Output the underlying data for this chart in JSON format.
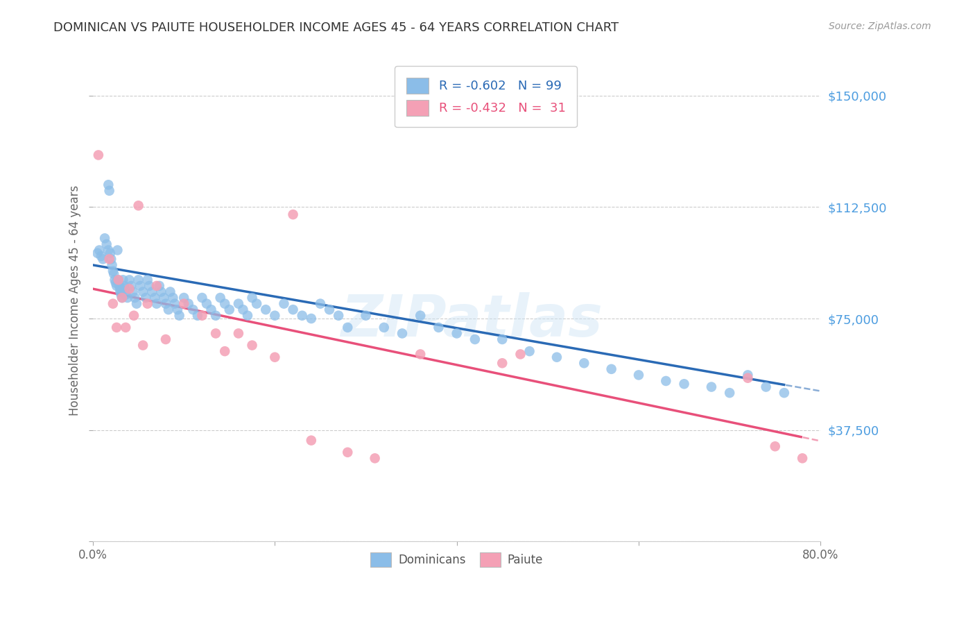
{
  "title": "DOMINICAN VS PAIUTE HOUSEHOLDER INCOME AGES 45 - 64 YEARS CORRELATION CHART",
  "source": "Source: ZipAtlas.com",
  "ylabel": "Householder Income Ages 45 - 64 years",
  "xlim": [
    0.0,
    0.8
  ],
  "ylim": [
    0,
    162000
  ],
  "yticks": [
    0,
    37500,
    75000,
    112500,
    150000
  ],
  "ytick_labels": [
    "",
    "$37,500",
    "$75,000",
    "$112,500",
    "$150,000"
  ],
  "xtick_labels": [
    "0.0%",
    "",
    "",
    "",
    "80.0%"
  ],
  "xticks": [
    0.0,
    0.2,
    0.4,
    0.6,
    0.8
  ],
  "dominican_color": "#8bbde8",
  "paiute_color": "#f4a0b5",
  "dominican_line_color": "#2a6ab5",
  "paiute_line_color": "#e8507a",
  "legend_label_1": "R = -0.602   N = 99",
  "legend_label_2": "R = -0.432   N =  31",
  "bottom_legend_label_1": "Dominicans",
  "bottom_legend_label_2": "Paiute",
  "watermark": "ZIPatlas",
  "background_color": "#ffffff",
  "grid_color": "#cccccc",
  "title_color": "#333333",
  "axis_label_color": "#666666",
  "right_tick_color": "#4d9de0",
  "dominican_x": [
    0.005,
    0.007,
    0.009,
    0.011,
    0.013,
    0.015,
    0.017,
    0.017,
    0.018,
    0.019,
    0.02,
    0.021,
    0.022,
    0.023,
    0.024,
    0.025,
    0.026,
    0.027,
    0.028,
    0.029,
    0.03,
    0.03,
    0.031,
    0.032,
    0.033,
    0.034,
    0.035,
    0.036,
    0.038,
    0.04,
    0.042,
    0.044,
    0.046,
    0.048,
    0.05,
    0.052,
    0.055,
    0.058,
    0.06,
    0.062,
    0.065,
    0.068,
    0.07,
    0.073,
    0.075,
    0.078,
    0.08,
    0.083,
    0.085,
    0.088,
    0.09,
    0.093,
    0.095,
    0.1,
    0.105,
    0.11,
    0.115,
    0.12,
    0.125,
    0.13,
    0.135,
    0.14,
    0.145,
    0.15,
    0.16,
    0.165,
    0.17,
    0.175,
    0.18,
    0.19,
    0.2,
    0.21,
    0.22,
    0.23,
    0.24,
    0.25,
    0.26,
    0.27,
    0.28,
    0.3,
    0.32,
    0.34,
    0.36,
    0.38,
    0.4,
    0.42,
    0.45,
    0.48,
    0.51,
    0.54,
    0.57,
    0.6,
    0.63,
    0.65,
    0.68,
    0.7,
    0.72,
    0.74,
    0.76
  ],
  "dominican_y": [
    97000,
    98000,
    96000,
    95000,
    102000,
    100000,
    98000,
    120000,
    118000,
    97000,
    95000,
    93000,
    91000,
    90000,
    88000,
    87000,
    86000,
    98000,
    88000,
    86000,
    85000,
    84000,
    83000,
    82000,
    88000,
    86000,
    85000,
    83000,
    82000,
    88000,
    86000,
    84000,
    82000,
    80000,
    88000,
    86000,
    84000,
    82000,
    88000,
    86000,
    84000,
    82000,
    80000,
    86000,
    84000,
    82000,
    80000,
    78000,
    84000,
    82000,
    80000,
    78000,
    76000,
    82000,
    80000,
    78000,
    76000,
    82000,
    80000,
    78000,
    76000,
    82000,
    80000,
    78000,
    80000,
    78000,
    76000,
    82000,
    80000,
    78000,
    76000,
    80000,
    78000,
    76000,
    75000,
    80000,
    78000,
    76000,
    72000,
    76000,
    72000,
    70000,
    76000,
    72000,
    70000,
    68000,
    68000,
    64000,
    62000,
    60000,
    58000,
    56000,
    54000,
    53000,
    52000,
    50000,
    56000,
    52000,
    50000
  ],
  "paiute_x": [
    0.006,
    0.018,
    0.022,
    0.026,
    0.028,
    0.032,
    0.036,
    0.04,
    0.045,
    0.05,
    0.055,
    0.06,
    0.07,
    0.08,
    0.1,
    0.12,
    0.135,
    0.145,
    0.16,
    0.175,
    0.2,
    0.22,
    0.24,
    0.28,
    0.31,
    0.36,
    0.45,
    0.47,
    0.72,
    0.75,
    0.78
  ],
  "paiute_y": [
    130000,
    95000,
    80000,
    72000,
    88000,
    82000,
    72000,
    85000,
    76000,
    113000,
    66000,
    80000,
    86000,
    68000,
    80000,
    76000,
    70000,
    64000,
    70000,
    66000,
    62000,
    110000,
    34000,
    30000,
    28000,
    63000,
    60000,
    63000,
    55000,
    32000,
    28000
  ]
}
